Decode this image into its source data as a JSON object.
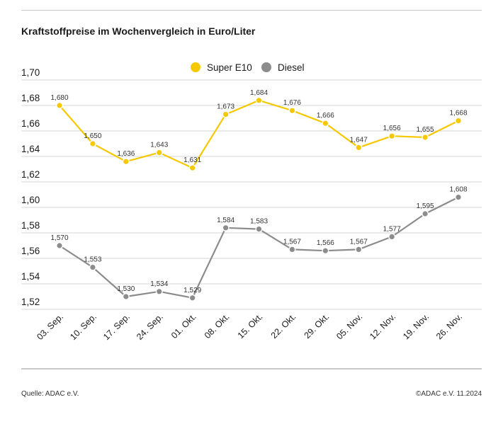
{
  "header": {
    "title": "Kraftstoffpreise im Wochenvergleich in Euro/Liter"
  },
  "footer": {
    "source": "Quelle: ADAC e.V.",
    "copyright": "©ADAC e.V. 11.2024"
  },
  "colors": {
    "super_e10": "#f5c800",
    "diesel": "#8c8c8c",
    "grid": "#d4d4d4"
  },
  "chart_data": {
    "type": "line",
    "title": "Kraftstoffpreise im Wochenvergleich in Euro/Liter",
    "xlabel": "",
    "ylabel": "",
    "categories": [
      "03. Sep.",
      "10. Sep.",
      "17. Sep.",
      "24. Sep.",
      "01. Okt.",
      "08. Okt.",
      "15. Okt.",
      "22. Okt.",
      "29. Okt.",
      "05. Nov.",
      "12. Nov.",
      "19. Nov.",
      "26. Nov."
    ],
    "yticks": [
      "1,52",
      "1,54",
      "1,56",
      "1,58",
      "1,60",
      "1,62",
      "1,64",
      "1,66",
      "1,68",
      "1,70"
    ],
    "ylim": [
      1.52,
      1.7
    ],
    "grid": true,
    "legend_position": "top-center",
    "series": [
      {
        "name": "Super E10",
        "values": [
          1.68,
          1.65,
          1.636,
          1.643,
          1.631,
          1.673,
          1.684,
          1.676,
          1.666,
          1.647,
          1.656,
          1.655,
          1.668
        ],
        "labels": [
          "1,680",
          "1,650",
          "1,636",
          "1,643",
          "1,631",
          "1,673",
          "1,684",
          "1,676",
          "1,666",
          "1,647",
          "1,656",
          "1,655",
          "1,668"
        ]
      },
      {
        "name": "Diesel",
        "values": [
          1.57,
          1.553,
          1.53,
          1.534,
          1.529,
          1.584,
          1.583,
          1.567,
          1.566,
          1.567,
          1.577,
          1.595,
          1.608
        ],
        "labels": [
          "1,570",
          "1,553",
          "1,530",
          "1,534",
          "1,529",
          "1,584",
          "1,583",
          "1,567",
          "1,566",
          "1,567",
          "1,577",
          "1,595",
          "1,608"
        ]
      }
    ]
  }
}
